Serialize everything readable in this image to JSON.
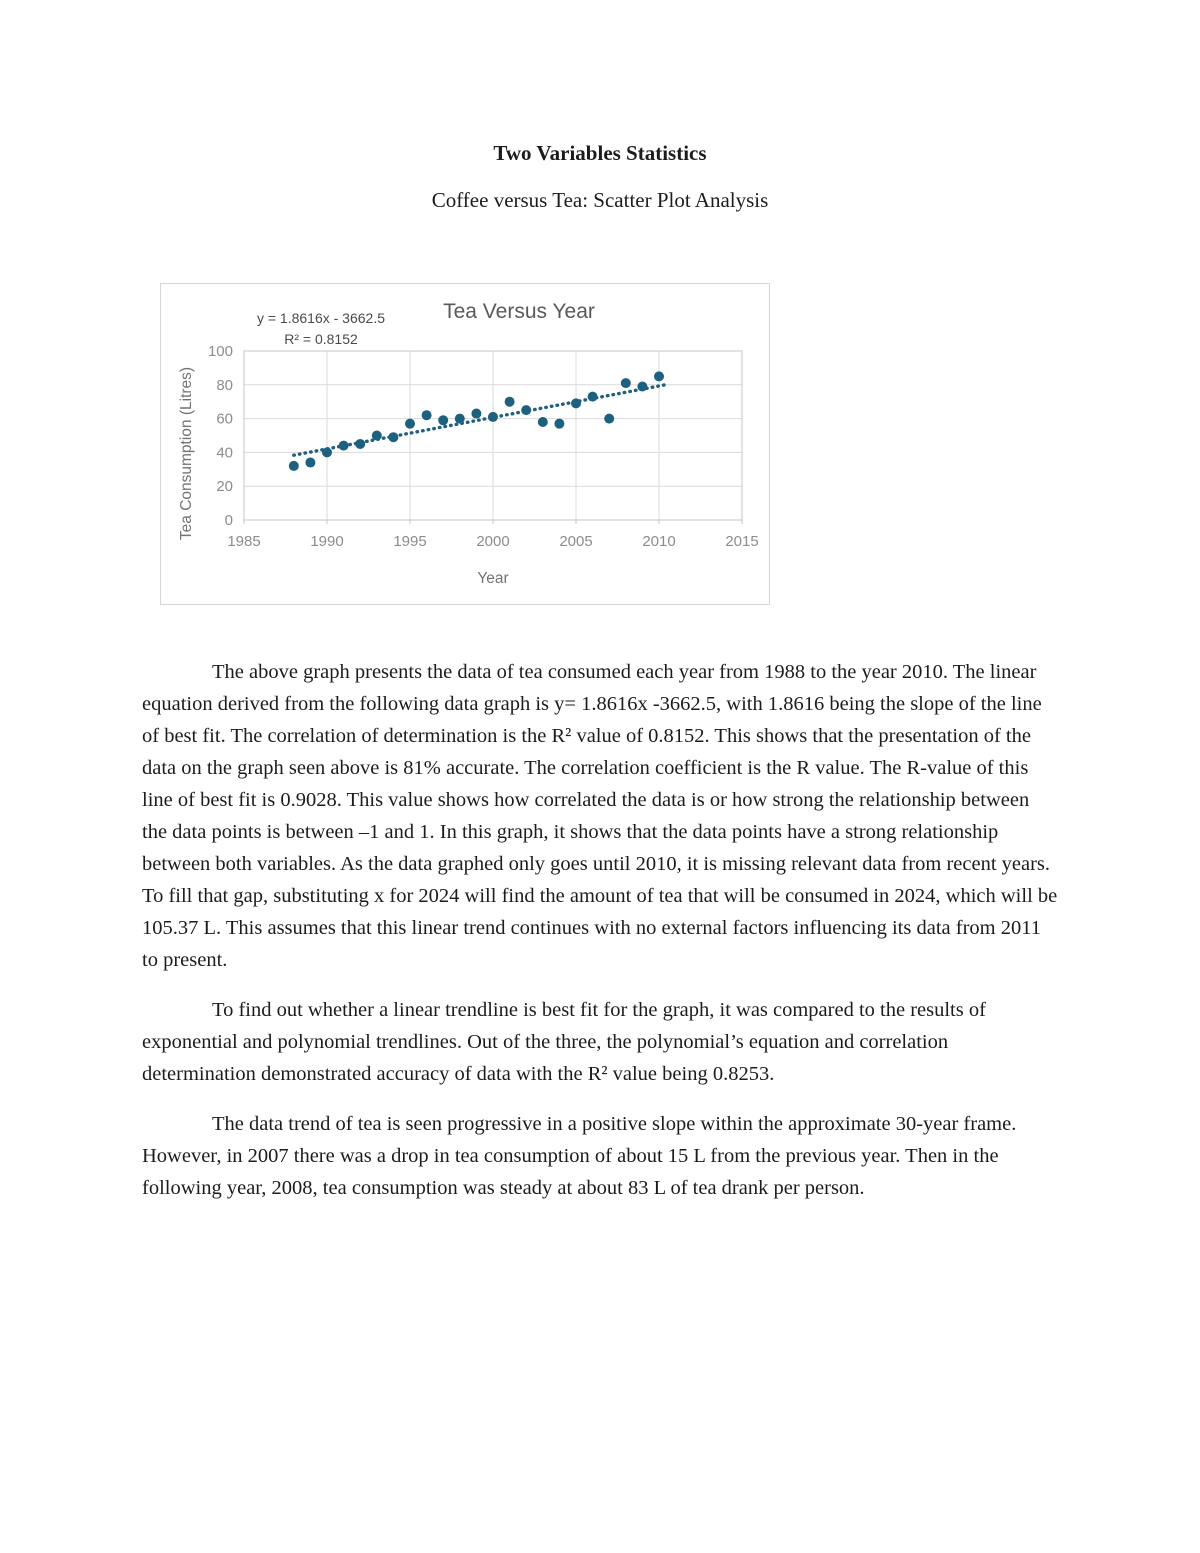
{
  "page": {
    "title": "Two Variables Statistics",
    "subtitle": "Coffee versus Tea: Scatter Plot Analysis"
  },
  "chart_data": {
    "type": "scatter",
    "title": "Tea Versus Year",
    "equation_label": "y = 1.8616x - 3662.5",
    "r_squared_label": "R² = 0.8152",
    "xlabel": "Year",
    "ylabel": "Tea Consumption (Litres)",
    "xlim": [
      1985,
      2015
    ],
    "ylim": [
      0,
      100
    ],
    "x_ticks": [
      1985,
      1990,
      1995,
      2000,
      2005,
      2010,
      2015
    ],
    "y_ticks": [
      0,
      20,
      40,
      60,
      80,
      100
    ],
    "grid": true,
    "legend": "none",
    "point_color": "#1d6080",
    "gridline_color": "#dadada",
    "axis_text_color": "#8c8c8c",
    "axis_title_color": "#737373",
    "x": [
      1988,
      1989,
      1990,
      1991,
      1992,
      1993,
      1994,
      1995,
      1996,
      1997,
      1998,
      1999,
      2000,
      2001,
      2002,
      2003,
      2004,
      2005,
      2006,
      2007,
      2008,
      2009,
      2010
    ],
    "y": [
      32,
      34,
      40,
      44,
      45,
      50,
      49,
      57,
      62,
      59,
      60,
      63,
      61,
      70,
      65,
      58,
      57,
      69,
      73,
      60,
      81,
      79,
      85
    ],
    "trendline": {
      "style": "dotted",
      "slope": 1.8616,
      "intercept": -3662.5,
      "x_start": 1988,
      "x_end": 2010.6
    }
  },
  "paragraphs": [
    "The above graph presents the data of tea consumed each year from 1988 to the year 2010. The linear equation derived from the following data graph is y= 1.8616x -3662.5, with 1.8616 being the slope of the line of best fit. The correlation of determination is the R² value of 0.8152. This shows that the presentation of the data on the graph seen above is 81% accurate. The correlation coefficient is the R value. The R-value of this line of best fit is 0.9028. This value shows how correlated the data is or how strong the relationship between the data points is between –1 and 1. In this graph, it shows that the data points have a strong relationship between both variables. As the data graphed only goes until 2010, it is missing relevant data from recent years. To fill that gap, substituting x for 2024 will find the amount of tea that will be consumed in 2024, which will be 105.37 L. This assumes that this linear trend continues with no external factors influencing its data from 2011 to present.",
    "To find out whether a linear trendline is best fit for the graph, it was compared to the results of exponential and polynomial trendlines. Out of the three, the polynomial’s equation and correlation determination demonstrated accuracy of data with the R² value being 0.8253.",
    "The data trend of tea is seen progressive in a positive slope within the approximate 30-year frame. However, in 2007 there was a drop in tea consumption of about 15 L from the previous year. Then in the following year, 2008, tea consumption was steady at about 83 L of tea drank per person."
  ]
}
